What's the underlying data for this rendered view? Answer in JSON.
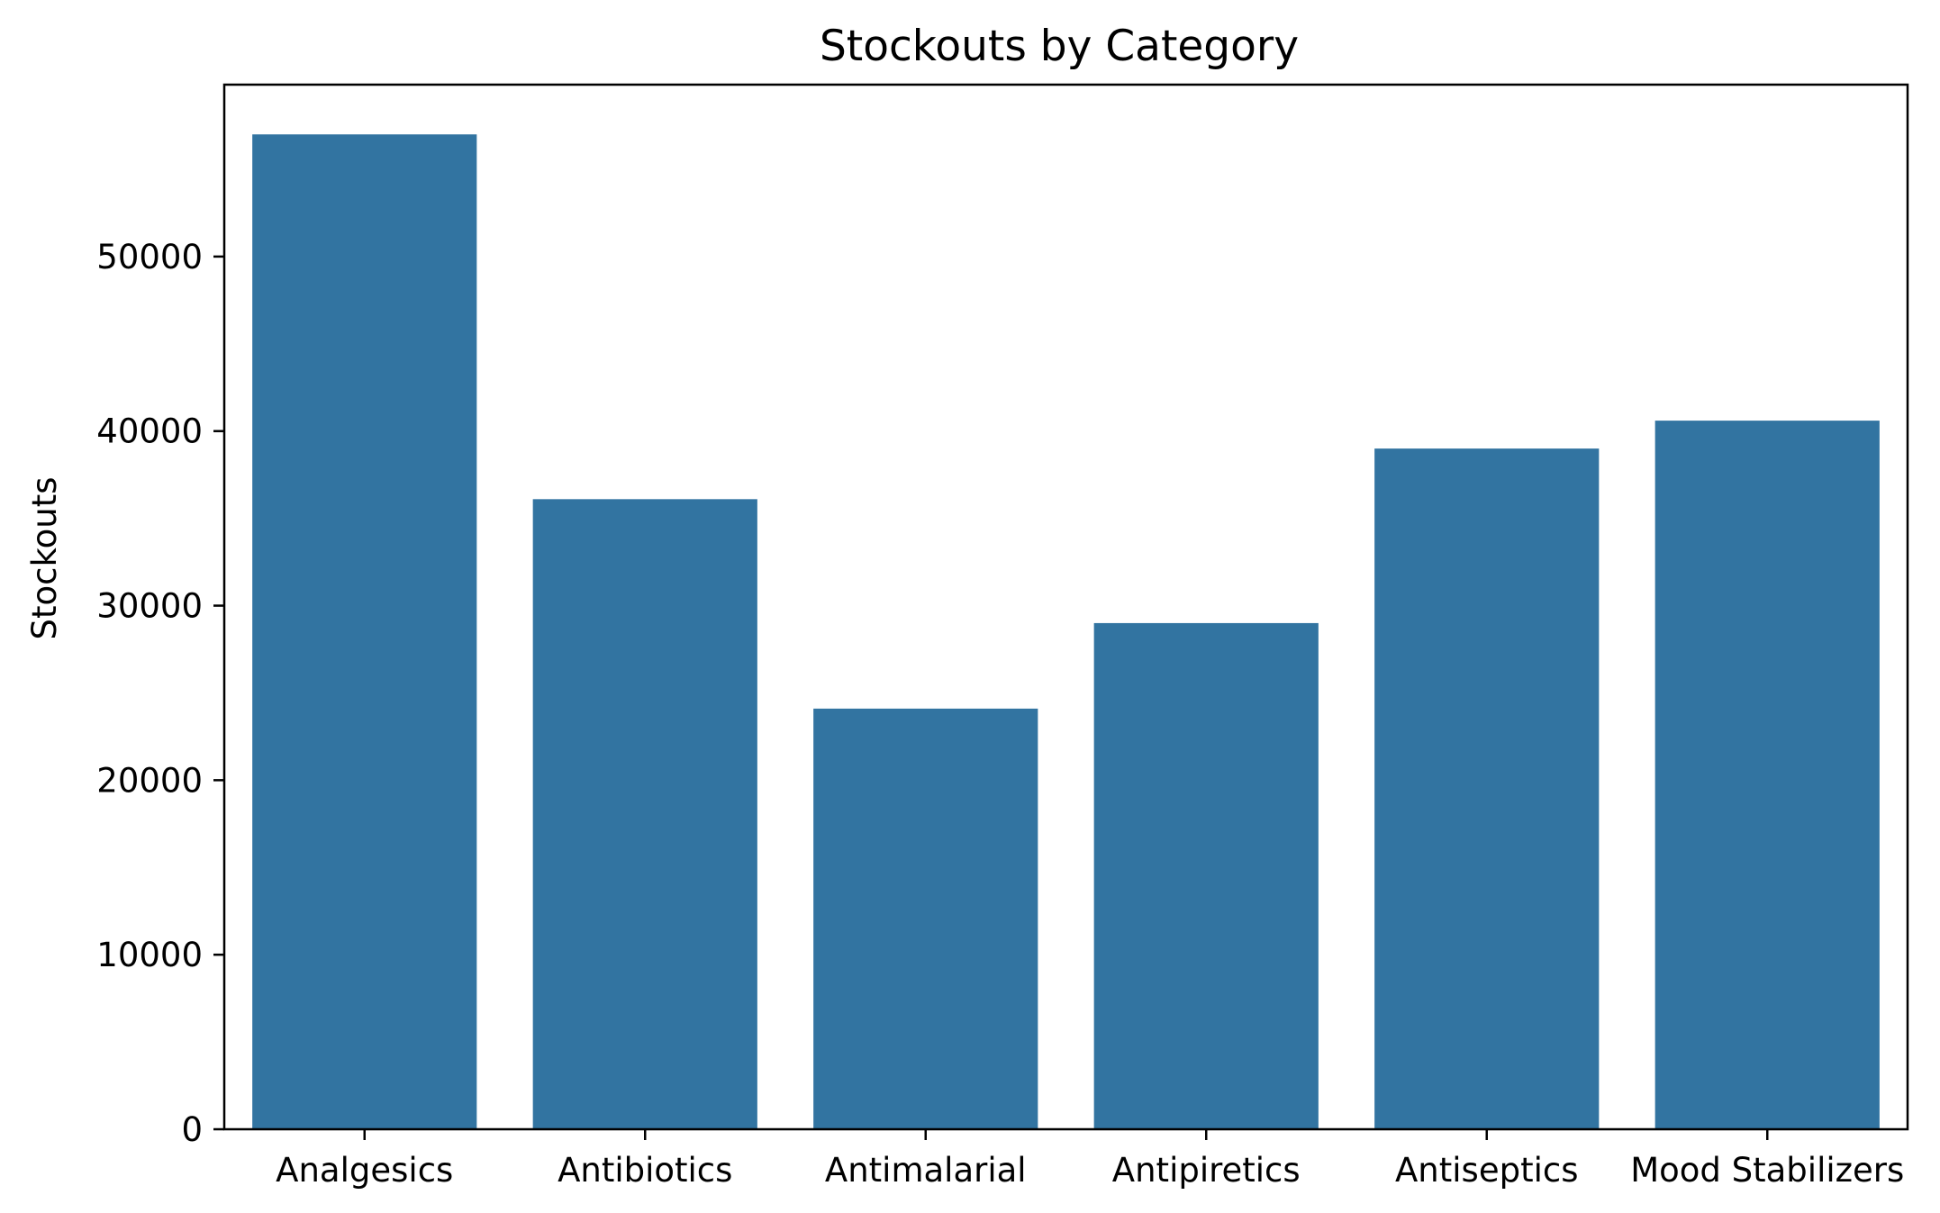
{
  "chart_data": {
    "type": "bar",
    "title": "Stockouts by Category",
    "xlabel": "",
    "ylabel": "Stockouts",
    "categories": [
      "Analgesics",
      "Antibiotics",
      "Antimalarial",
      "Antipiretics",
      "Antiseptics",
      "Mood Stabilizers"
    ],
    "values": [
      57000,
      36100,
      24100,
      29000,
      39000,
      40600
    ],
    "ylim": [
      0,
      59850
    ],
    "yticks": [
      0,
      10000,
      20000,
      30000,
      40000,
      50000
    ],
    "ytick_labels": [
      "0",
      "10000",
      "20000",
      "30000",
      "40000",
      "50000"
    ],
    "grid": false,
    "bar_color": "#3274a1"
  }
}
